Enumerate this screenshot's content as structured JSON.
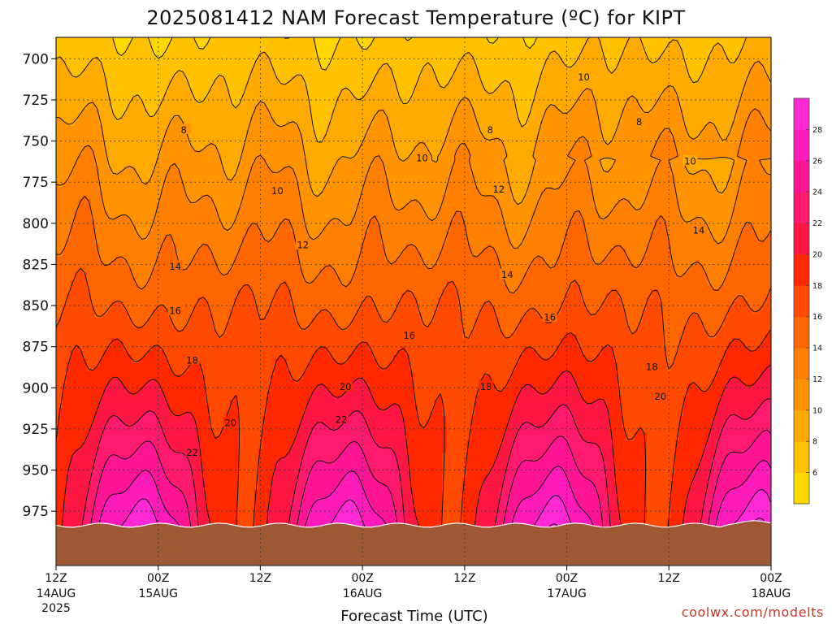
{
  "title": "2025081412 NAM Forecast Temperature (ºC) for KIPT",
  "xlabel": "Forecast Time (UTC)",
  "credit": "coolwx.com/modelts",
  "chart_data": {
    "type": "heatmap",
    "title": "2025081412 NAM Forecast Temperature (ºC) for KIPT",
    "xlabel": "Forecast Time (UTC)",
    "ylabel": "",
    "y_levels": [
      700,
      725,
      750,
      775,
      800,
      825,
      850,
      875,
      900,
      925,
      950,
      975
    ],
    "ylim": [
      1008,
      687
    ],
    "y_inverted": true,
    "x_ticks": [
      {
        "h": 0,
        "top": "12Z",
        "mid": "14AUG",
        "bot": "2025"
      },
      {
        "h": 12,
        "top": "00Z",
        "mid": "15AUG",
        "bot": ""
      },
      {
        "h": 24,
        "top": "12Z",
        "mid": "",
        "bot": ""
      },
      {
        "h": 36,
        "top": "00Z",
        "mid": "16AUG",
        "bot": ""
      },
      {
        "h": 48,
        "top": "12Z",
        "mid": "",
        "bot": ""
      },
      {
        "h": 60,
        "top": "00Z",
        "mid": "17AUG",
        "bot": ""
      },
      {
        "h": 72,
        "top": "12Z",
        "mid": "",
        "bot": ""
      },
      {
        "h": 84,
        "top": "00Z",
        "mid": "18AUG",
        "bot": ""
      }
    ],
    "xlim": [
      0,
      84
    ],
    "grid": true,
    "contour_interval": 2,
    "colorbar": {
      "placement": "right",
      "levels": [
        6,
        8,
        10,
        12,
        14,
        16,
        18,
        20,
        22,
        24,
        26,
        28
      ],
      "colors": [
        "#ffd800",
        "#ffc100",
        "#ffaa00",
        "#ff9400",
        "#ff8000",
        "#ff6600",
        "#ff4a00",
        "#ff2800",
        "#ff1744",
        "#ff1a6e",
        "#ff1493",
        "#ff1aba",
        "#ff29d6"
      ]
    },
    "contour_labels": [
      {
        "h": 15,
        "p": 743,
        "v": "8"
      },
      {
        "h": 51,
        "p": 743,
        "v": "8"
      },
      {
        "h": 68.5,
        "p": 738,
        "v": "8"
      },
      {
        "h": 62,
        "p": 711,
        "v": "10"
      },
      {
        "h": 43,
        "p": 760,
        "v": "10"
      },
      {
        "h": 26,
        "p": 780,
        "v": "10"
      },
      {
        "h": 74.5,
        "p": 762,
        "v": "10"
      },
      {
        "h": 52,
        "p": 779,
        "v": "12"
      },
      {
        "h": 29,
        "p": 813,
        "v": "12"
      },
      {
        "h": 14,
        "p": 826,
        "v": "14"
      },
      {
        "h": 53,
        "p": 831,
        "v": "14"
      },
      {
        "h": 75.5,
        "p": 804,
        "v": "14"
      },
      {
        "h": 14,
        "p": 853,
        "v": "16"
      },
      {
        "h": 41.5,
        "p": 868,
        "v": "16"
      },
      {
        "h": 58,
        "p": 857,
        "v": "16"
      },
      {
        "h": 16,
        "p": 883,
        "v": "18"
      },
      {
        "h": 50.5,
        "p": 899,
        "v": "18"
      },
      {
        "h": 70,
        "p": 887,
        "v": "18"
      },
      {
        "h": 34,
        "p": 899,
        "v": "20"
      },
      {
        "h": 20.5,
        "p": 921,
        "v": "20"
      },
      {
        "h": 71,
        "p": 905,
        "v": "20"
      },
      {
        "h": 33.5,
        "p": 919,
        "v": "22"
      },
      {
        "h": 16,
        "p": 939,
        "v": "22"
      }
    ]
  }
}
